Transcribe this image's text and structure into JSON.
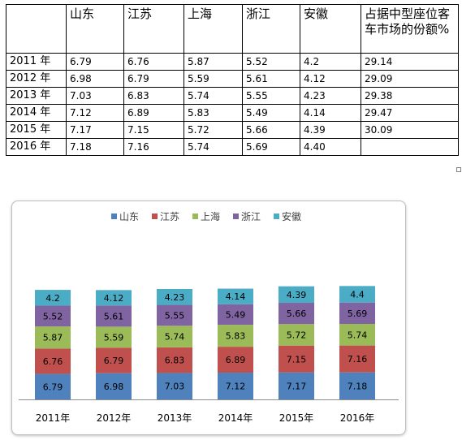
{
  "table": {
    "headers": [
      "",
      "山东",
      "江苏",
      "上海",
      "浙江",
      "安徽",
      "占据中型座位客车市场的份额%"
    ],
    "rows": [
      [
        "2011 年",
        "6.79",
        "6.76",
        "5.87",
        "5.52",
        "4.2",
        "29.14"
      ],
      [
        "2012 年",
        "6.98",
        "6.79",
        "5.59",
        "5.61",
        "4.12",
        "29.09"
      ],
      [
        "2013 年",
        "7.03",
        "6.83",
        "5.74",
        "5.55",
        "4.23",
        "29.38"
      ],
      [
        "2014 年",
        "7.12",
        "6.89",
        "5.83",
        "5.49",
        "4.14",
        "29.47"
      ],
      [
        "2015 年",
        "7.17",
        "7.15",
        "5.72",
        "5.66",
        "4.39",
        "30.09"
      ],
      [
        "2016 年",
        "7.18",
        "7.16",
        "5.74",
        "5.69",
        "4.40",
        ""
      ]
    ]
  },
  "chart_data": {
    "type": "bar",
    "stacked": true,
    "categories": [
      "2011年",
      "2012年",
      "2013年",
      "2014年",
      "2015年",
      "2016年"
    ],
    "series": [
      {
        "name": "山东",
        "color": "#4F81BD",
        "values": [
          6.79,
          6.98,
          7.03,
          7.12,
          7.17,
          7.18
        ],
        "labels": [
          "6.79",
          "6.98",
          "7.03",
          "7.12",
          "7.17",
          "7.18"
        ]
      },
      {
        "name": "江苏",
        "color": "#C0504D",
        "values": [
          6.76,
          6.79,
          6.83,
          6.89,
          7.15,
          7.16
        ],
        "labels": [
          "6.76",
          "6.79",
          "6.83",
          "6.89",
          "7.15",
          "7.16"
        ]
      },
      {
        "name": "上海",
        "color": "#9BBB59",
        "values": [
          5.87,
          5.59,
          5.74,
          5.83,
          5.72,
          5.74
        ],
        "labels": [
          "5.87",
          "5.59",
          "5.74",
          "5.83",
          "5.72",
          "5.74"
        ]
      },
      {
        "name": "浙江",
        "color": "#8064A2",
        "values": [
          5.52,
          5.61,
          5.55,
          5.49,
          5.66,
          5.69
        ],
        "labels": [
          "5.52",
          "5.61",
          "5.55",
          "5.49",
          "5.66",
          "5.69"
        ]
      },
      {
        "name": "安徽",
        "color": "#4BACC6",
        "values": [
          4.2,
          4.12,
          4.23,
          4.14,
          4.39,
          4.4
        ],
        "labels": [
          "4.2",
          "4.12",
          "4.23",
          "4.14",
          "4.39",
          "4.4"
        ]
      }
    ],
    "legend_position": "top",
    "grid": false,
    "data_labels": true,
    "title": "",
    "xlabel": "",
    "ylabel": ""
  }
}
